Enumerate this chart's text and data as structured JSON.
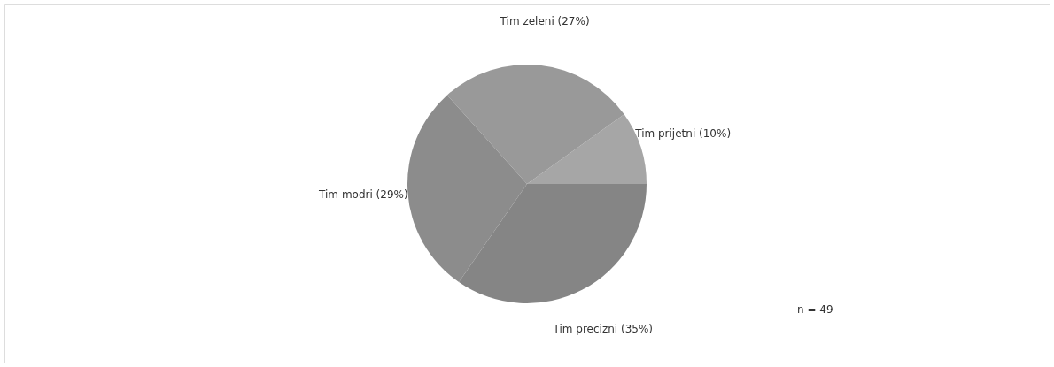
{
  "chart_data": {
    "type": "pie",
    "categories": [
      "Tim prijetni",
      "Tim zeleni",
      "Tim modri",
      "Tim precizni"
    ],
    "values": [
      10,
      27,
      29,
      35
    ],
    "value_labels": [
      "(10%)",
      "(27%)",
      "(29%)",
      "(35%)"
    ],
    "colors": [
      "#a6a6a6",
      "#999999",
      "#8c8c8c",
      "#858585"
    ],
    "annotations": [
      "n = 49"
    ],
    "legend": false
  }
}
